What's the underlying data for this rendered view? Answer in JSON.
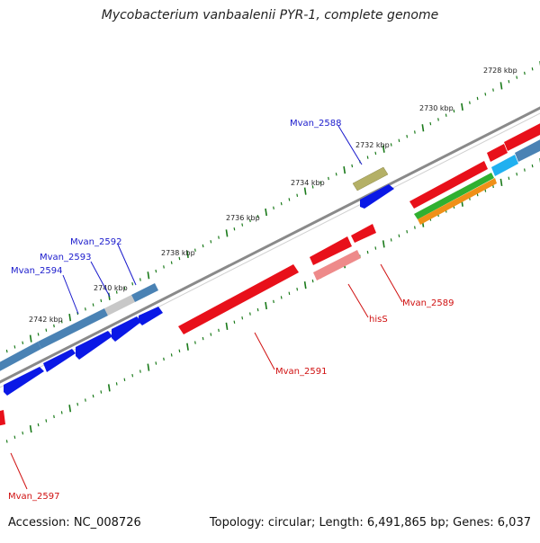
{
  "title": "Mycobacterium vanbaalenii PYR-1, complete genome",
  "footer": {
    "accession": "Accession: NC_008726",
    "topology": "Topology: circular; Length: 6,491,865 bp; Genes: 6,037"
  },
  "scale": {
    "labels": [
      "2728 kbp",
      "2730 kbp",
      "2732 kbp",
      "2734 kbp",
      "2736 kbp",
      "2738 kbp",
      "2740 kbp",
      "2742 kbp"
    ]
  },
  "genes": {
    "forward": [
      "Mvan_2588",
      "Mvan_2592",
      "Mvan_2593",
      "Mvan_2594"
    ],
    "reverse": [
      "Mvan_2589",
      "hisS",
      "Mvan_2591",
      "Mvan_2597"
    ]
  },
  "colors": {
    "backbone": "#7a7a7a",
    "forward_label": "#1a1acc",
    "reverse_label": "#d01010",
    "tick": "#1a7a1a",
    "red_gene": "#e8101a",
    "pink_gene": "#ee8a8a",
    "blue_gene": "#0a18e6",
    "steel_gene": "#4a82b4",
    "olive_gene": "#b4b066",
    "grey_gene": "#c8c8c8",
    "green_gene": "#30b030",
    "orange_gene": "#f09018",
    "cyan_gene": "#20b0f0"
  }
}
